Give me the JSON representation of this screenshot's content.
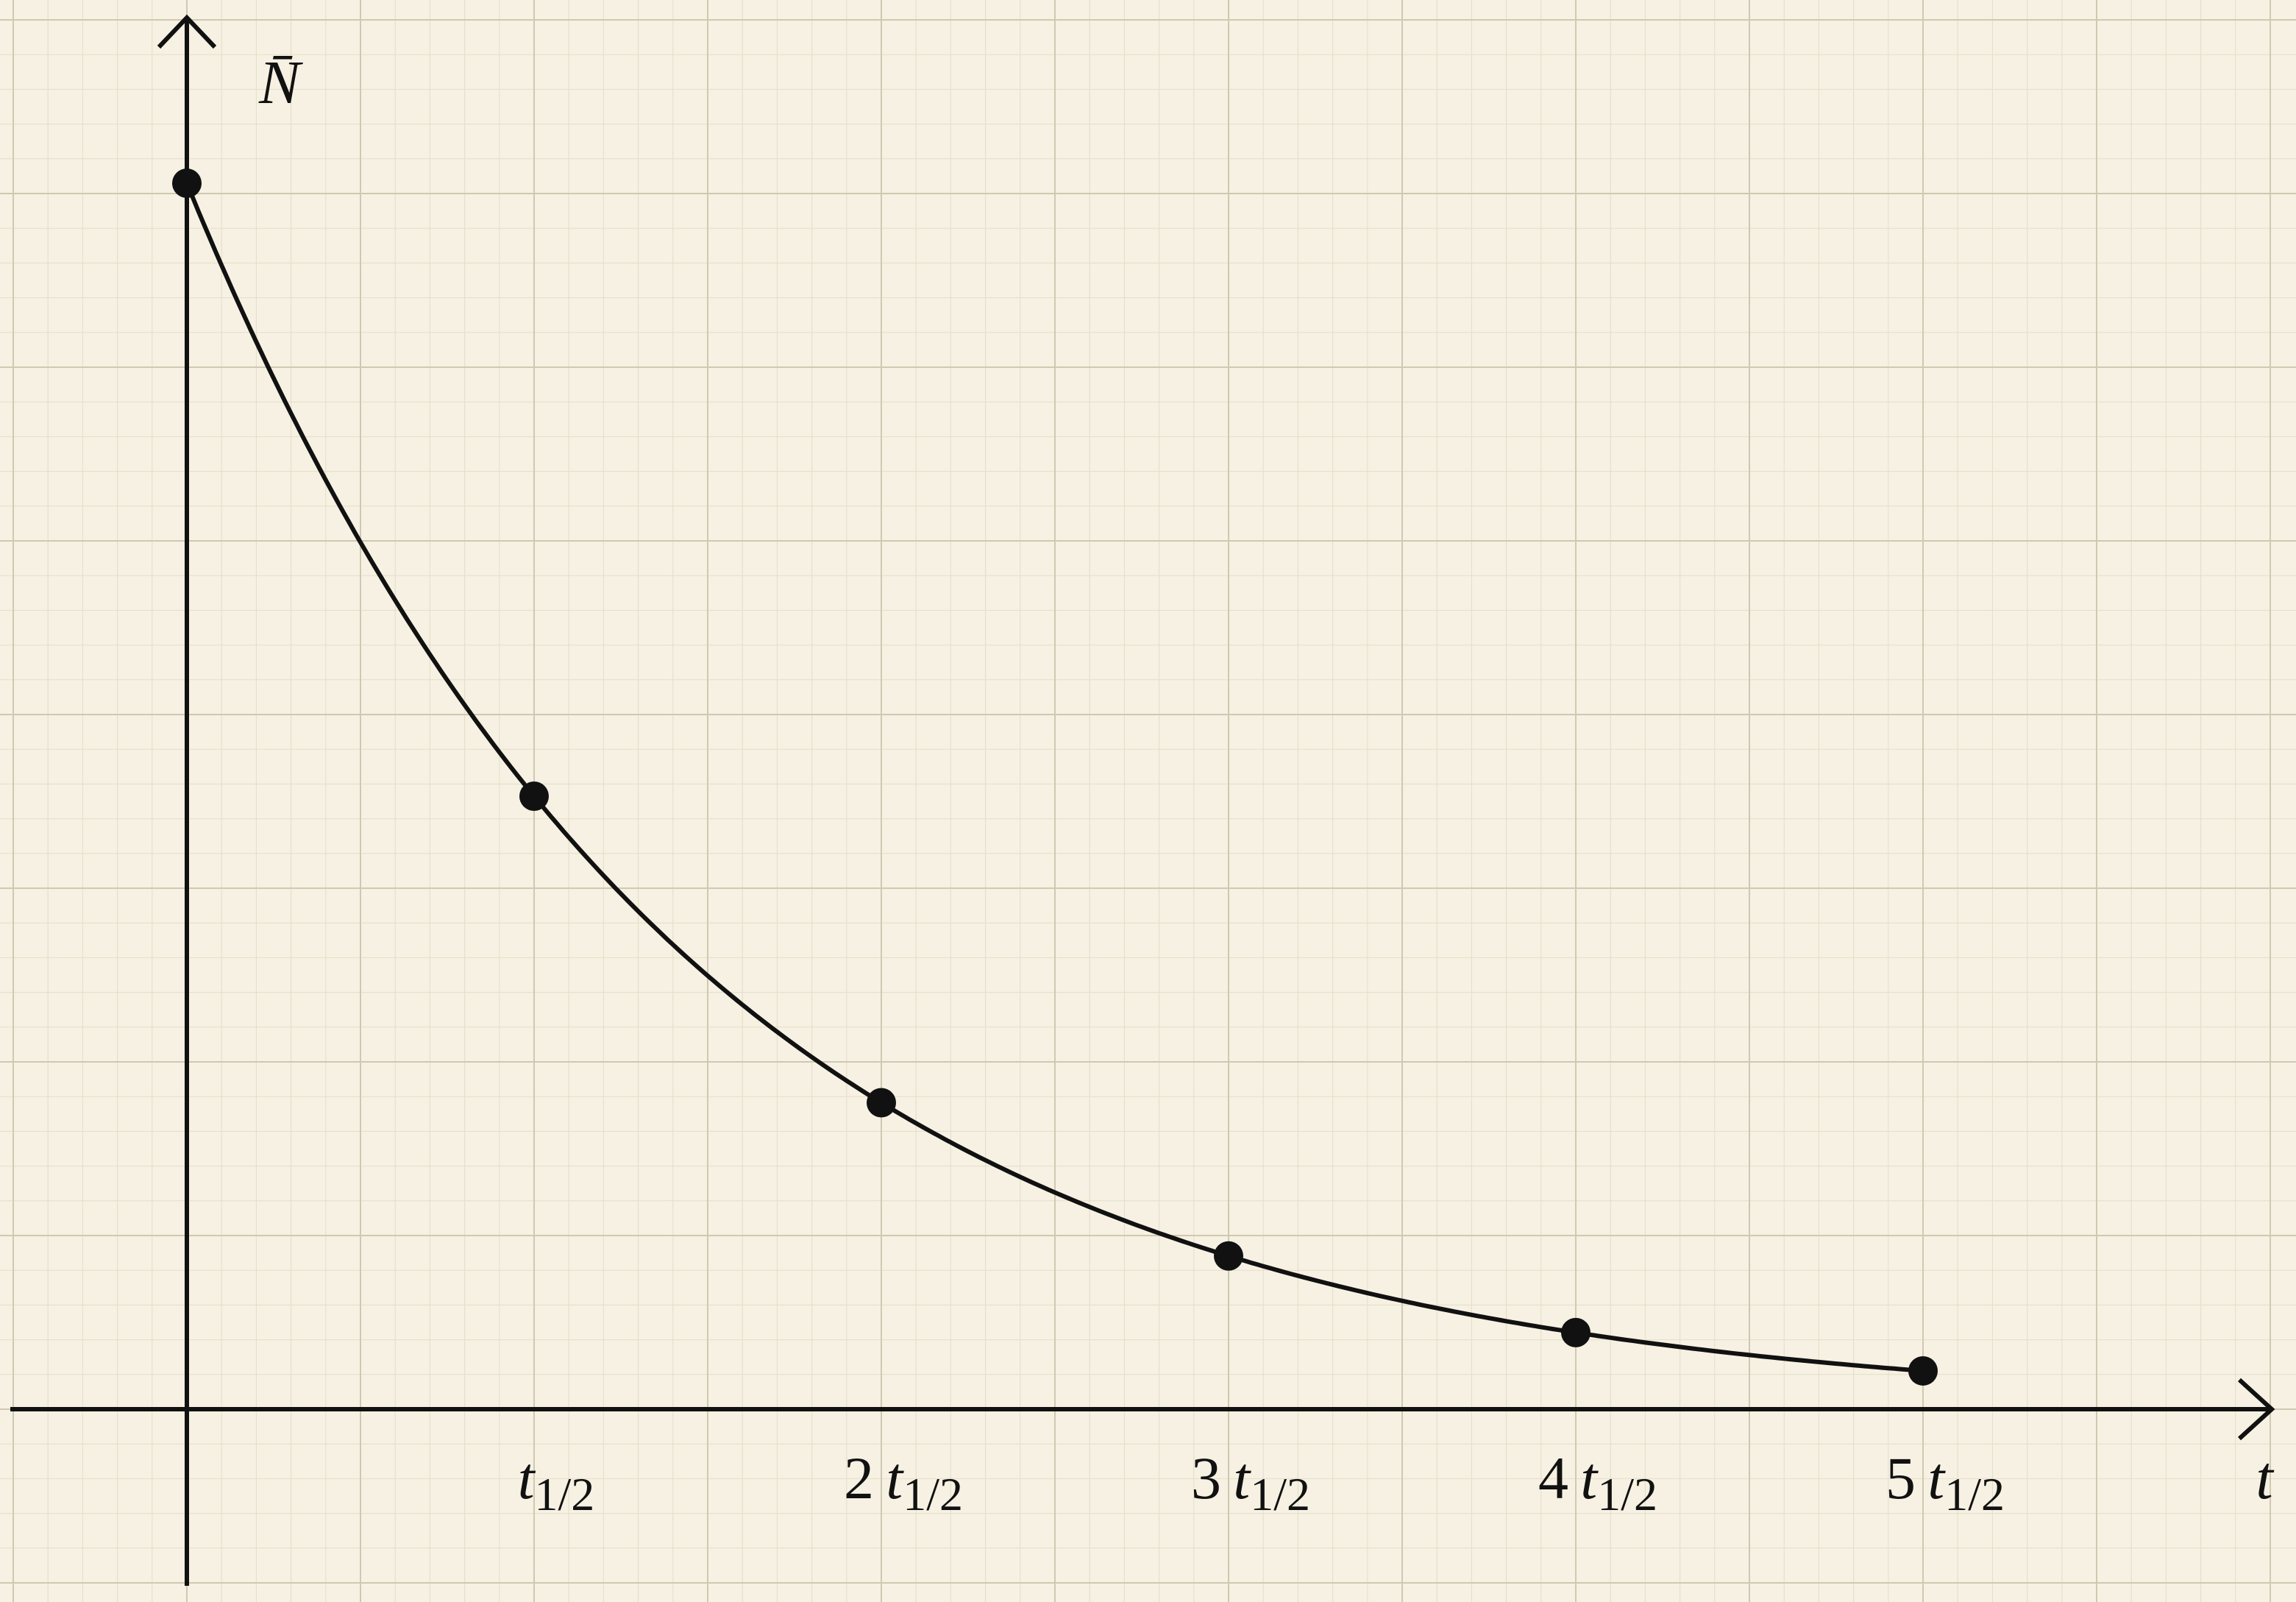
{
  "colors": {
    "background": "#f6f1e2",
    "grid_minor": "#e4ddc8",
    "grid_major": "#cfc8b2",
    "ink": "#111111"
  },
  "chart_data": {
    "type": "line",
    "title": "",
    "xlabel": "t",
    "ylabel": "N̄",
    "grid": true,
    "xlim": [
      -0.5,
      6.0
    ],
    "ylim": [
      -0.14,
      1.12
    ],
    "x_ticks": [
      {
        "value": 1,
        "coefficient": "",
        "symbol": "t",
        "subscript": "1/2"
      },
      {
        "value": 2,
        "coefficient": "2",
        "symbol": "t",
        "subscript": "1/2"
      },
      {
        "value": 3,
        "coefficient": "3",
        "symbol": "t",
        "subscript": "1/2"
      },
      {
        "value": 4,
        "coefficient": "4",
        "symbol": "t",
        "subscript": "1/2"
      },
      {
        "value": 5,
        "coefficient": "5",
        "symbol": "t",
        "subscript": "1/2"
      }
    ],
    "curve": {
      "function": "exponential decay",
      "half_life": 1,
      "x_range": [
        0,
        5
      ],
      "y0": 1
    },
    "series": [
      {
        "x": [
          0,
          1,
          2,
          3,
          4,
          5
        ],
        "y": [
          1.0,
          0.5,
          0.25,
          0.125,
          0.0625,
          0.03125
        ],
        "marker": "dot",
        "line": "smooth"
      }
    ]
  }
}
